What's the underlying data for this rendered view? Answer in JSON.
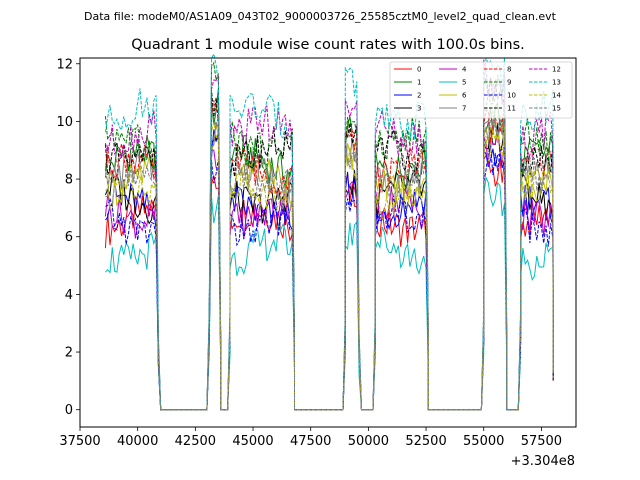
{
  "chart_data": {
    "type": "line",
    "suptitle": "Data file: modeM0/AS1A09_043T02_9000003726_25585cztM0_level2_quad_clean.evt",
    "title": "Quadrant 1 module wise count rates with 100.0s bins.",
    "xlabel": "",
    "ylabel": "",
    "x_offset_label": "+3.304e8",
    "xlim": [
      37500,
      59000
    ],
    "ylim": [
      -0.6,
      12.2
    ],
    "xticks": [
      37500,
      40000,
      42500,
      45000,
      47500,
      50000,
      52500,
      55000,
      57500
    ],
    "xtick_labels": [
      "37500",
      "40000",
      "42500",
      "45000",
      "47500",
      "50000",
      "52500",
      "55000",
      "57500"
    ],
    "yticks": [
      0,
      2,
      4,
      6,
      8,
      10,
      12
    ],
    "ytick_labels": [
      "0",
      "2",
      "4",
      "6",
      "8",
      "10",
      "12"
    ],
    "segments": [
      {
        "on": [
          38600,
          40800
        ],
        "off": [
          41000,
          43000
        ]
      },
      {
        "on": [
          43200,
          43500
        ],
        "off": [
          43600,
          43900
        ]
      },
      {
        "on": [
          44000,
          46700
        ],
        "off": [
          46800,
          48900
        ]
      },
      {
        "on": [
          49000,
          49500
        ],
        "off": [
          49700,
          50200
        ]
      },
      {
        "on": [
          50300,
          52500
        ],
        "off": [
          52600,
          54900
        ]
      },
      {
        "on": [
          55000,
          55900
        ],
        "off": [
          56000,
          56500
        ]
      },
      {
        "on": [
          56600,
          58000
        ],
        "off": null
      }
    ],
    "legend_location": "upper right",
    "series": [
      {
        "name": "0",
        "color": "#ff0000",
        "dash": "solid",
        "level": 6.6
      },
      {
        "name": "1",
        "color": "#008000",
        "dash": "solid",
        "level": 8.6
      },
      {
        "name": "2",
        "color": "#0000ff",
        "dash": "solid",
        "level": 7.0
      },
      {
        "name": "3",
        "color": "#000000",
        "dash": "solid",
        "level": 7.4
      },
      {
        "name": "4",
        "color": "#c000c0",
        "dash": "solid",
        "level": 6.9
      },
      {
        "name": "5",
        "color": "#00bfbf",
        "dash": "solid",
        "level": 5.5
      },
      {
        "name": "6",
        "color": "#bfbf00",
        "dash": "solid",
        "level": 7.9
      },
      {
        "name": "7",
        "color": "#808080",
        "dash": "solid",
        "level": 8.1
      },
      {
        "name": "8",
        "color": "#ff0000",
        "dash": "dashed",
        "level": 8.4
      },
      {
        "name": "9",
        "color": "#008000",
        "dash": "dashed",
        "level": 9.3
      },
      {
        "name": "10",
        "color": "#0000ff",
        "dash": "dashed",
        "level": 6.5
      },
      {
        "name": "11",
        "color": "#000000",
        "dash": "dashed",
        "level": 8.9
      },
      {
        "name": "12",
        "color": "#c000c0",
        "dash": "dashed",
        "level": 9.6
      },
      {
        "name": "13",
        "color": "#00bfbf",
        "dash": "dashed",
        "level": 10.2
      },
      {
        "name": "14",
        "color": "#bfbf00",
        "dash": "dashed",
        "level": 7.6
      },
      {
        "name": "15",
        "color": "#808080",
        "dash": "dashed",
        "level": 8.0
      }
    ]
  }
}
